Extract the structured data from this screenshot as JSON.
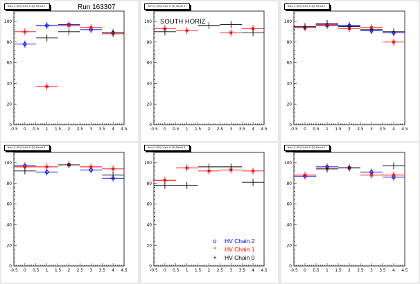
{
  "header": {
    "run_label": "Run 163307"
  },
  "colors": {
    "chain2": "#0000ff",
    "chain1": "#ff0000",
    "chain0": "#000000"
  },
  "legend": [
    {
      "label": "HV Chain 2",
      "color": "#0000ff",
      "symbol": "o"
    },
    {
      "label": "HV Chain 1",
      "color": "#ff0000",
      "symbol": "*"
    },
    {
      "label": "HV Chain 0",
      "color": "#000000",
      "symbol": "+"
    }
  ],
  "chart_data": [
    {
      "type": "scatter",
      "title": "dom 0 (W) Octnt 0 (N) Panel 0",
      "annotation": "",
      "x": [
        0,
        1,
        2,
        3,
        4
      ],
      "xlim": [
        -0.5,
        4.5
      ],
      "ylim": [
        0,
        110
      ],
      "xticks": [
        "-0.5",
        "0",
        "0.5",
        "1",
        "1.5",
        "2",
        "2.5",
        "3",
        "3.5",
        "4",
        "4.5"
      ],
      "yticks": [
        "0",
        "20",
        "40",
        "60",
        "80",
        "100"
      ],
      "series": [
        {
          "name": "HV Chain 2",
          "values": [
            78,
            96,
            97,
            92,
            89
          ]
        },
        {
          "name": "HV Chain 1",
          "values": [
            90,
            37,
            96,
            94,
            88
          ]
        },
        {
          "name": "HV Chain 0",
          "values": [
            null,
            84,
            90,
            null,
            89
          ]
        }
      ]
    },
    {
      "type": "scatter",
      "title": "dom 0 (W) Octnt 0 (N) Panel 1",
      "annotation": "SOUTH HORIZ",
      "x": [
        0,
        1,
        2,
        3,
        4
      ],
      "xlim": [
        -0.5,
        4.5
      ],
      "ylim": [
        0,
        110
      ],
      "xticks": [
        "-0.5",
        "0",
        "0.5",
        "1",
        "1.5",
        "2",
        "2.5",
        "3",
        "3.5",
        "4",
        "4.5"
      ],
      "yticks": [
        "0",
        "20",
        "40",
        "60",
        "80",
        "100"
      ],
      "series": [
        {
          "name": "HV Chain 2",
          "values": [
            null,
            null,
            null,
            null,
            null
          ]
        },
        {
          "name": "HV Chain 1",
          "values": [
            93,
            91,
            null,
            89,
            93
          ]
        },
        {
          "name": "HV Chain 0",
          "values": [
            90,
            null,
            96,
            97,
            89
          ]
        }
      ]
    },
    {
      "type": "scatter",
      "title": "dom 0 (W) Octnt 0 (N) Panel 2",
      "annotation": "",
      "x": [
        0,
        1,
        2,
        3,
        4
      ],
      "xlim": [
        -0.5,
        4.5
      ],
      "ylim": [
        0,
        110
      ],
      "xticks": [
        "-0.5",
        "0",
        "0.5",
        "1",
        "1.5",
        "2",
        "2.5",
        "3",
        "3.5",
        "4",
        "4.5"
      ],
      "yticks": [
        "0",
        "20",
        "40",
        "60",
        "80",
        "100"
      ],
      "series": [
        {
          "name": "HV Chain 2",
          "values": [
            94,
            96,
            96,
            91,
            89
          ]
        },
        {
          "name": "HV Chain 1",
          "values": [
            94,
            97,
            93,
            94,
            80
          ]
        },
        {
          "name": "HV Chain 0",
          "values": [
            95,
            98,
            95,
            92,
            90
          ]
        }
      ]
    },
    {
      "type": "scatter",
      "title": "dom 0 (W) Octnt 0 (N) Panel 3",
      "annotation": "",
      "x": [
        0,
        1,
        2,
        3,
        4
      ],
      "xlim": [
        -0.5,
        4.5
      ],
      "ylim": [
        0,
        110
      ],
      "xticks": [
        "-0.5",
        "0",
        "0.5",
        "1",
        "1.5",
        "2",
        "2.5",
        "3",
        "3.5",
        "4",
        "4.5"
      ],
      "yticks": [
        "0",
        "20",
        "40",
        "60",
        "80",
        "100"
      ],
      "series": [
        {
          "name": "HV Chain 2",
          "values": [
            97,
            91,
            98,
            93,
            85
          ]
        },
        {
          "name": "HV Chain 1",
          "values": [
            96,
            96,
            98,
            96,
            94
          ]
        },
        {
          "name": "HV Chain 0",
          "values": [
            92,
            null,
            98,
            null,
            88
          ]
        }
      ]
    },
    {
      "type": "scatter",
      "title": "dom 0 (W) Octnt 0 (N) Panel 4",
      "annotation": "",
      "x": [
        0,
        1,
        2,
        3,
        4
      ],
      "xlim": [
        -0.5,
        4.5
      ],
      "ylim": [
        0,
        110
      ],
      "xticks": [
        "-0.5",
        "0",
        "0.5",
        "1",
        "1.5",
        "2",
        "2.5",
        "3",
        "3.5",
        "4",
        "4.5"
      ],
      "yticks": [
        "0",
        "20",
        "40",
        "60",
        "80",
        "100"
      ],
      "series": [
        {
          "name": "HV Chain 2",
          "values": [
            null,
            null,
            null,
            null,
            null
          ]
        },
        {
          "name": "HV Chain 1",
          "values": [
            83,
            95,
            92,
            93,
            92
          ]
        },
        {
          "name": "HV Chain 0",
          "values": [
            78,
            78,
            96,
            96,
            81
          ]
        }
      ]
    },
    {
      "type": "scatter",
      "title": "dom 0 (W) Octnt 0 (N) Panel 5",
      "annotation": "",
      "x": [
        0,
        1,
        2,
        3,
        4
      ],
      "xlim": [
        -0.5,
        4.5
      ],
      "ylim": [
        0,
        110
      ],
      "xticks": [
        "-0.5",
        "0",
        "0.5",
        "1",
        "1.5",
        "2",
        "2.5",
        "3",
        "3.5",
        "4",
        "4.5"
      ],
      "yticks": [
        "0",
        "20",
        "40",
        "60",
        "80",
        "100"
      ],
      "series": [
        {
          "name": "HV Chain 2",
          "values": [
            87,
            96,
            95,
            91,
            86
          ]
        },
        {
          "name": "HV Chain 1",
          "values": [
            88,
            94,
            95,
            88,
            88
          ]
        },
        {
          "name": "HV Chain 0",
          "values": [
            null,
            94,
            95,
            null,
            97
          ]
        }
      ]
    }
  ]
}
